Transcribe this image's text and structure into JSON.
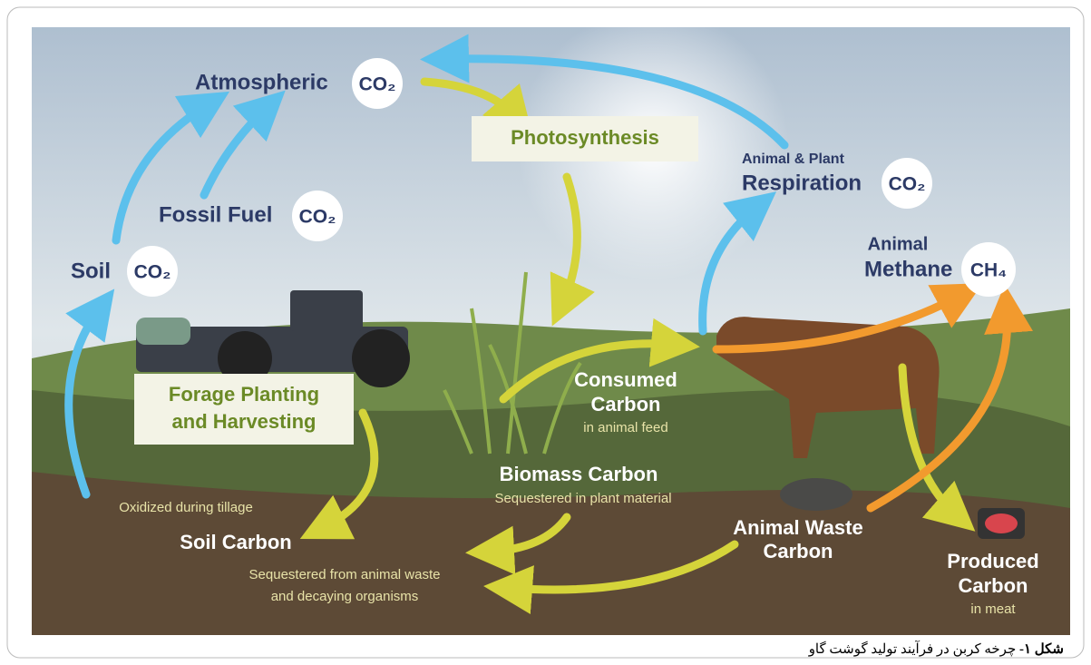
{
  "diagram": {
    "atmospheric": {
      "name": "Atmospheric",
      "gas": "CO₂"
    },
    "photosynthesis": "Photosynthesis",
    "respiration": {
      "top": "Animal & Plant",
      "name": "Respiration",
      "gas": "CO₂"
    },
    "fossil_fuel": {
      "name": "Fossil Fuel",
      "gas": "CO₂"
    },
    "soil_co2": {
      "name": "Soil",
      "gas": "CO₂"
    },
    "methane": {
      "top": "Animal",
      "name": "Methane",
      "gas": "CH₄"
    },
    "forage": [
      "Forage Planting",
      "and Harvesting"
    ],
    "consumed": {
      "lines": [
        "Consumed",
        "Carbon"
      ],
      "note": "in animal feed"
    },
    "biomass": {
      "name": "Biomass Carbon",
      "note": "Sequestered in plant material"
    },
    "tillage": "Oxidized during tillage",
    "soil_carbon": {
      "name": "Soil Carbon",
      "note": [
        "Sequestered from animal waste",
        "and decaying organisms"
      ]
    },
    "animal_waste": [
      "Animal Waste",
      "Carbon"
    ],
    "produced": {
      "lines": [
        "Produced",
        "Carbon"
      ],
      "note": "in meat"
    }
  },
  "caption": {
    "label": "شکل ۱-",
    "text": "چرخه کربن در فرآیند تولید گوشت گاو"
  }
}
